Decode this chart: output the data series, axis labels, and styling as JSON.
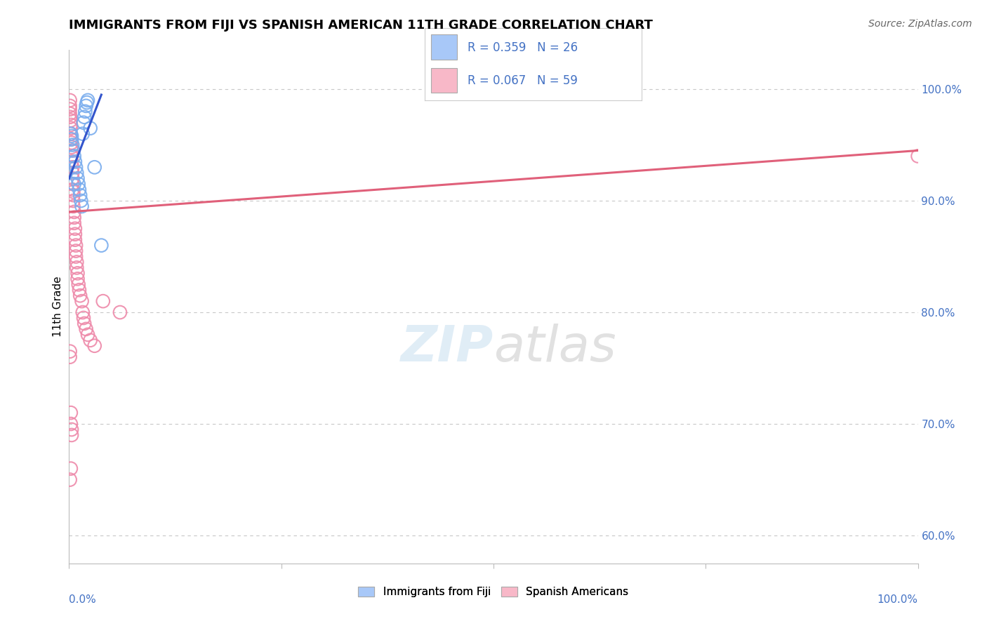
{
  "title": "IMMIGRANTS FROM FIJI VS SPANISH AMERICAN 11TH GRADE CORRELATION CHART",
  "source": "Source: ZipAtlas.com",
  "ylabel": "11th Grade",
  "fiji_color": "#a8c8f8",
  "fiji_edge_color": "#7aadee",
  "spanish_color": "#f8b8c8",
  "spanish_edge_color": "#ee8aaa",
  "fiji_line_color": "#3355cc",
  "spanish_line_color": "#e0607a",
  "legend_fiji_color": "#a8c8f8",
  "legend_spanish_color": "#f8b8c8",
  "watermark_color": "#d0e8f8",
  "label_color": "#4472c4",
  "ytick_values": [
    0.6,
    0.7,
    0.8,
    0.9,
    1.0
  ],
  "xlim": [
    0.0,
    1.0
  ],
  "ylim": [
    0.575,
    1.035
  ],
  "fiji_scatter_x": [
    0.002,
    0.003,
    0.004,
    0.005,
    0.006,
    0.007,
    0.008,
    0.009,
    0.01,
    0.011,
    0.012,
    0.013,
    0.014,
    0.015,
    0.016,
    0.017,
    0.018,
    0.019,
    0.02,
    0.021,
    0.022,
    0.025,
    0.03,
    0.038,
    0.003,
    0.006
  ],
  "fiji_scatter_y": [
    0.96,
    0.955,
    0.95,
    0.945,
    0.94,
    0.935,
    0.93,
    0.925,
    0.92,
    0.915,
    0.91,
    0.905,
    0.9,
    0.895,
    0.96,
    0.97,
    0.975,
    0.98,
    0.985,
    0.988,
    0.99,
    0.965,
    0.93,
    0.86,
    0.958,
    0.915
  ],
  "spanish_scatter_x": [
    0.001,
    0.001,
    0.001,
    0.001,
    0.001,
    0.002,
    0.002,
    0.002,
    0.002,
    0.002,
    0.003,
    0.003,
    0.003,
    0.003,
    0.003,
    0.004,
    0.004,
    0.004,
    0.004,
    0.004,
    0.005,
    0.005,
    0.005,
    0.005,
    0.006,
    0.006,
    0.006,
    0.007,
    0.007,
    0.007,
    0.008,
    0.008,
    0.008,
    0.009,
    0.009,
    0.01,
    0.01,
    0.011,
    0.012,
    0.013,
    0.015,
    0.016,
    0.017,
    0.018,
    0.02,
    0.022,
    0.025,
    0.03,
    0.001,
    0.001,
    0.002,
    0.002,
    0.003,
    0.003,
    0.002,
    0.001,
    0.04,
    0.06,
    1.0
  ],
  "spanish_scatter_y": [
    0.99,
    0.985,
    0.982,
    0.978,
    0.975,
    0.972,
    0.968,
    0.965,
    0.96,
    0.955,
    0.952,
    0.948,
    0.945,
    0.94,
    0.935,
    0.93,
    0.925,
    0.92,
    0.915,
    0.91,
    0.908,
    0.905,
    0.9,
    0.895,
    0.89,
    0.885,
    0.88,
    0.875,
    0.87,
    0.865,
    0.86,
    0.855,
    0.85,
    0.845,
    0.84,
    0.835,
    0.83,
    0.825,
    0.82,
    0.815,
    0.81,
    0.8,
    0.795,
    0.79,
    0.785,
    0.78,
    0.775,
    0.77,
    0.765,
    0.76,
    0.71,
    0.7,
    0.695,
    0.69,
    0.66,
    0.65,
    0.81,
    0.8,
    0.94
  ],
  "fiji_line_x": [
    0.0,
    0.038
  ],
  "fiji_line_y": [
    0.92,
    0.995
  ],
  "spanish_line_x": [
    0.0,
    1.0
  ],
  "spanish_line_y": [
    0.89,
    0.945
  ]
}
